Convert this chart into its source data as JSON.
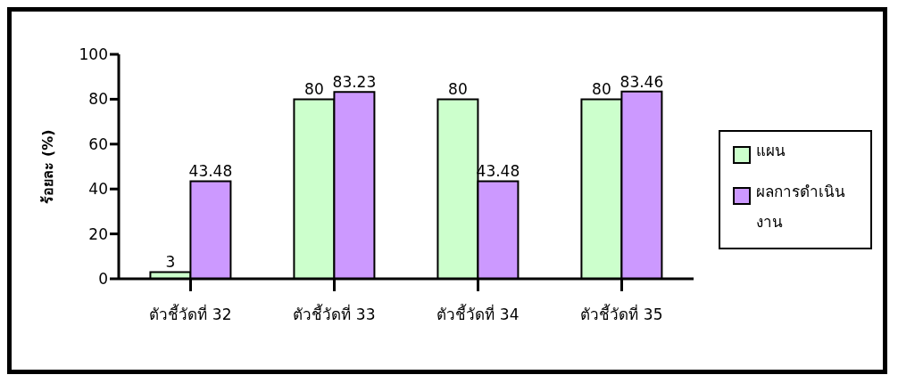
{
  "chart_data": {
    "type": "bar",
    "ylabel": "ร้อยละ (%)",
    "categories": [
      "ตัวชี้วัดที่ 32",
      "ตัวชี้วัดที่ 33",
      "ตัวชี้วัดที่ 34",
      "ตัวชี้วัดที่ 35"
    ],
    "series": [
      {
        "name": "แผน",
        "color": "#ccffcc",
        "values": [
          3,
          80,
          80,
          80
        ]
      },
      {
        "name": "ผลการดำเนินงาน",
        "color": "#cc99ff",
        "values": [
          43.48,
          83.23,
          43.48,
          83.46
        ]
      }
    ],
    "ylim": [
      0,
      100
    ],
    "yticks": [
      0,
      20,
      40,
      60,
      80,
      100
    ],
    "grid": false,
    "legend": "right",
    "data_labels": true
  }
}
